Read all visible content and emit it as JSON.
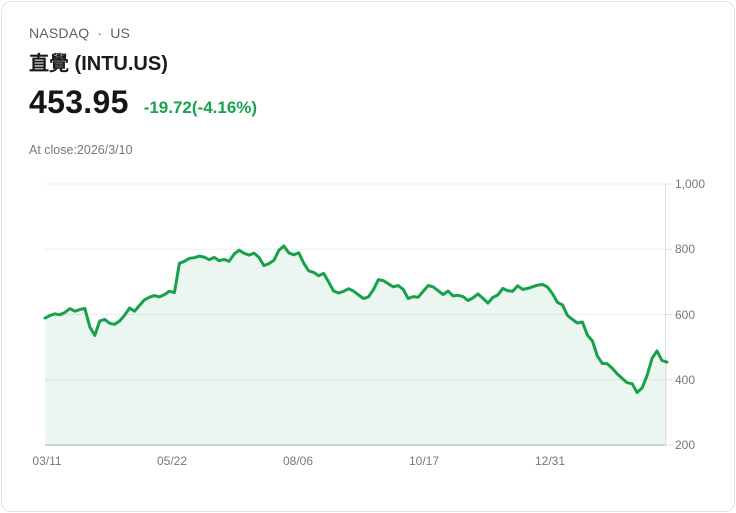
{
  "header": {
    "exchange": "NASDAQ",
    "separator": "·",
    "region": "US",
    "title": "直覺 (INTU.US)",
    "price": "453.95",
    "change": "-19.72(-4.16%)",
    "as_of": "At close:2026/3/10"
  },
  "colors": {
    "line_green": "#18a04c",
    "area_fill": "rgba(24,160,76,0.09)",
    "change_green": "#1aa24e",
    "gridline": "#ebedef",
    "axis_bottom": "#c4c8cb",
    "axis_right": "#dcdfe2"
  },
  "chart_data": {
    "type": "area",
    "title": "INTU.US 1-year daily close price",
    "symbol": "INTU.US",
    "x_tick_labels": [
      "03/11",
      "05/22",
      "08/06",
      "10/17",
      "12/31"
    ],
    "y_tick_labels": [
      "1,000",
      "800",
      "600",
      "400",
      "200"
    ],
    "ylim": [
      200,
      1000
    ],
    "grid": true,
    "legend": false,
    "last_close": 453.95,
    "values": [
      589,
      597,
      602,
      599,
      606,
      618,
      610,
      615,
      619,
      562,
      536,
      580,
      585,
      573,
      570,
      580,
      598,
      620,
      610,
      628,
      645,
      653,
      658,
      654,
      661,
      671,
      667,
      757,
      763,
      772,
      774,
      779,
      776,
      768,
      775,
      765,
      769,
      763,
      785,
      797,
      788,
      782,
      788,
      775,
      750,
      756,
      766,
      797,
      810,
      789,
      783,
      789,
      757,
      734,
      729,
      719,
      726,
      700,
      672,
      666,
      671,
      679,
      672,
      660,
      649,
      654,
      676,
      707,
      704,
      694,
      685,
      689,
      677,
      649,
      655,
      653,
      671,
      689,
      685,
      673,
      661,
      672,
      657,
      659,
      655,
      643,
      651,
      663,
      650,
      635,
      652,
      660,
      680,
      673,
      671,
      688,
      677,
      680,
      685,
      690,
      692,
      684,
      663,
      637,
      629,
      597,
      585,
      574,
      577,
      537,
      519,
      473,
      450,
      449,
      435,
      418,
      404,
      391,
      388,
      361,
      375,
      413,
      466,
      488,
      459,
      454
    ]
  }
}
